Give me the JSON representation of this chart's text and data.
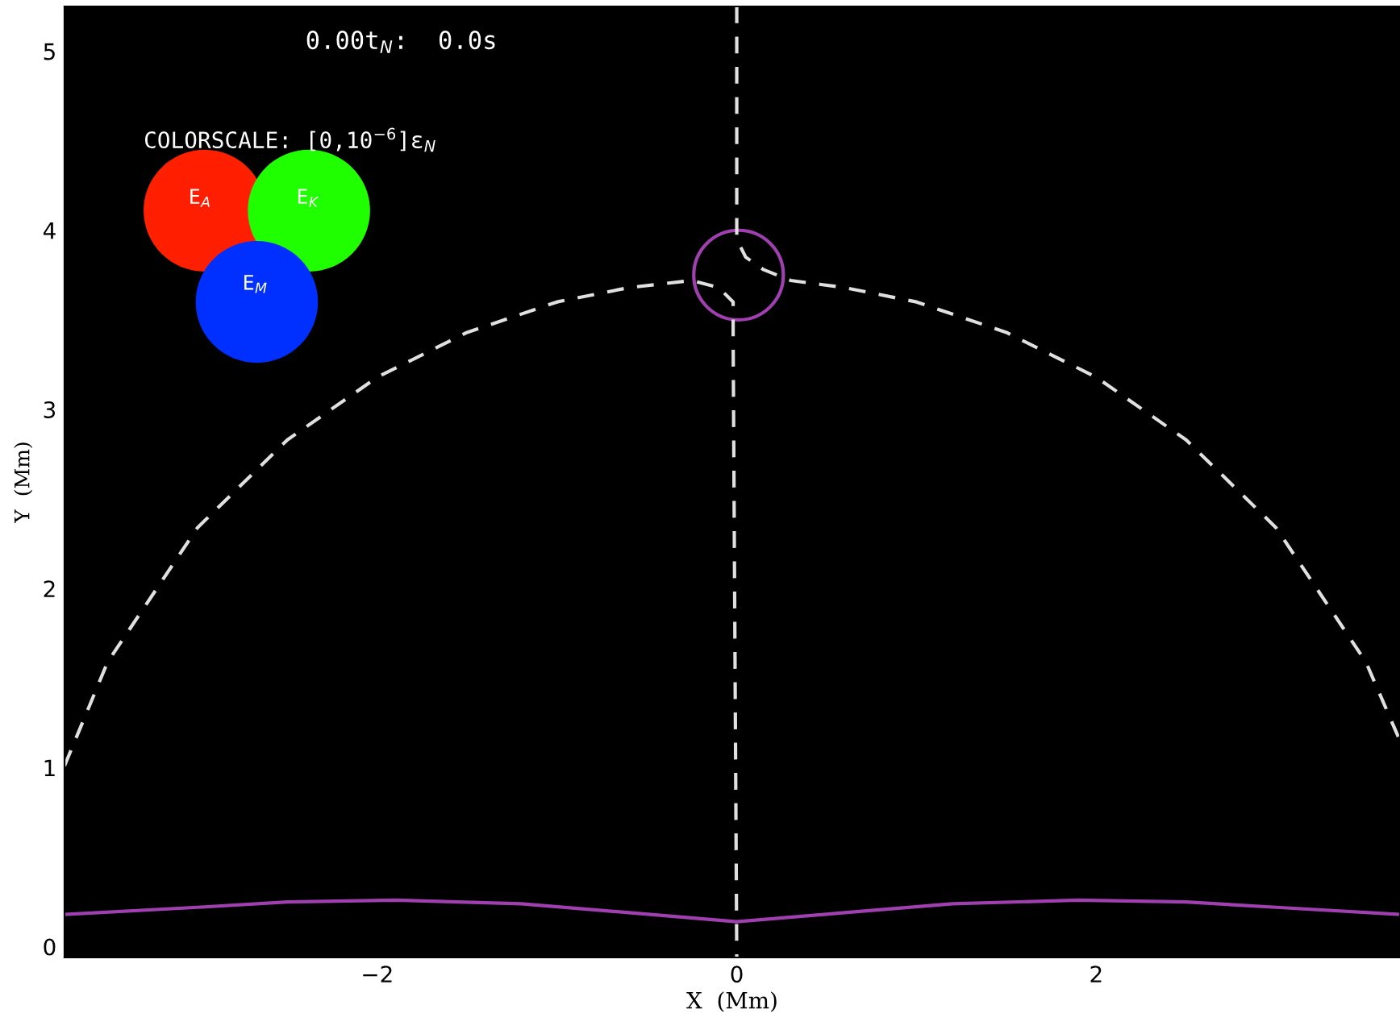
{
  "chart_data": {
    "type": "line",
    "xlabel": "X  (Mm)",
    "ylabel": "Y  (Mm)",
    "xlim": [
      -3.74,
      3.69
    ],
    "ylim": [
      -0.06,
      5.25
    ],
    "xticks": [
      {
        "value": -2,
        "label": "−2"
      },
      0,
      2
    ],
    "yticks": [
      0,
      1,
      2,
      3,
      4,
      5
    ],
    "grid": false,
    "legend": false,
    "marker": "none",
    "series": [
      {
        "color": "#e0e0e0",
        "line_style": "dashed",
        "x": [
          -3.74,
          -3.5,
          -3.0,
          -2.5,
          -2.0,
          -1.5,
          -1.0,
          -0.6,
          -0.25,
          -0.1,
          -0.02,
          -0.02,
          0.0
        ],
        "values": [
          1.01,
          1.59,
          2.34,
          2.83,
          3.18,
          3.43,
          3.6,
          3.68,
          3.72,
          3.68,
          3.6,
          3.4,
          -0.06
        ]
      },
      {
        "color": "#e0e0e0",
        "line_style": "dashed",
        "x": [
          0.0,
          0.0,
          0.05,
          0.15,
          0.3,
          0.6,
          1.0,
          1.5,
          2.0,
          2.5,
          3.0,
          3.5,
          3.69
        ],
        "values": [
          5.25,
          3.95,
          3.85,
          3.78,
          3.72,
          3.68,
          3.6,
          3.43,
          3.18,
          2.83,
          2.34,
          1.59,
          1.15
        ]
      },
      {
        "type": "scatter",
        "marker": "circle",
        "color": "#a040b0",
        "x": [
          0.01
        ],
        "values": [
          3.75
        ]
      },
      {
        "color": "#a040b0",
        "line_style": "solid",
        "x": [
          -3.74,
          -3.0,
          -2.5,
          -1.9,
          -1.2,
          -0.6,
          0.0,
          0.6,
          1.2,
          1.9,
          2.5,
          3.0,
          3.69
        ],
        "values": [
          0.18,
          0.22,
          0.25,
          0.26,
          0.24,
          0.19,
          0.14,
          0.19,
          0.24,
          0.26,
          0.25,
          0.22,
          0.18
        ]
      }
    ],
    "annotations": [
      "0.00t$_{N}$:  0.0s",
      "COLORSCALE: [0,10$^{−6}$]ε$_{N}$",
      "E$_{A}$",
      "E$_{K}$",
      "E$_{M}$"
    ]
  }
}
